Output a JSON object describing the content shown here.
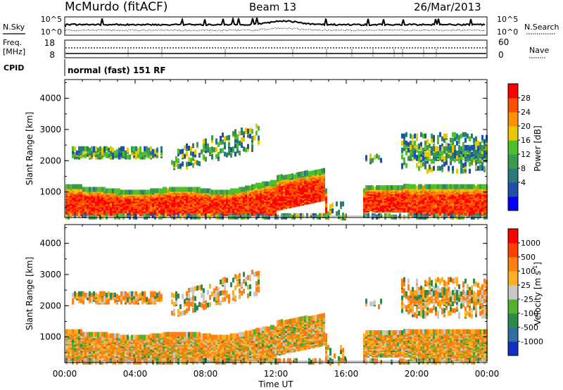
{
  "header": {
    "station": "McMurdo (fitACF)",
    "beam": "Beam 13",
    "date": "26/Mar/2013"
  },
  "strips": {
    "nsky_label": "N.Sky",
    "nsky_ticks": [
      "10^5",
      "10^0"
    ],
    "nsearch_label": "N.Search",
    "nsearch_ticks": [
      "10^5",
      "10^0"
    ],
    "freq_label_1": "Freq.",
    "freq_label_2": "[MHz]",
    "freq_ticks": [
      "18",
      "8"
    ],
    "nave_label": "Nave",
    "nave_ticks": [
      "60",
      "0"
    ],
    "cpid_label": "CPID",
    "cpid_value": "normal (fast) 151 RF"
  },
  "chart_data": [
    {
      "type": "heatmap",
      "name": "power-panel",
      "ylabel": "Slant Range [km]",
      "ylim": [
        180,
        4600
      ],
      "y_ticks": [
        1000,
        2000,
        3000,
        4000
      ],
      "colorbar_label": "Power [dB]",
      "colorbar_ticks": [
        "28",
        "24",
        "20",
        "16",
        "12",
        "8",
        "4"
      ],
      "colorbar_colors": [
        "#0000ff",
        "#1f4fa8",
        "#2a7a7a",
        "#3c9a50",
        "#4fbf30",
        "#e8c800",
        "#ff9000",
        "#ff5000",
        "#ff0000"
      ]
    },
    {
      "type": "heatmap",
      "name": "velocity-panel",
      "ylabel": "Slant Range [km]",
      "ylim": [
        180,
        4600
      ],
      "y_ticks": [
        1000,
        2000,
        3000,
        4000
      ],
      "colorbar_label": "Velocity [m s",
      "colorbar_label_sup": "-1",
      "colorbar_label_end": "]",
      "colorbar_ticks": [
        "1000",
        "500",
        "100",
        "25",
        "-25",
        "-100",
        "-500",
        "-1000"
      ],
      "colorbar_colors": [
        "#1030c0",
        "#2f6ea0",
        "#2d8a4a",
        "#55b030",
        "#c8c8c8",
        "#ffb020",
        "#ff8010",
        "#ff4000",
        "#ff0000"
      ],
      "xlabel": "Time UT",
      "x_ticks": [
        "00:00",
        "04:00",
        "08:00",
        "12:00",
        "16:00",
        "20:00",
        "00:00"
      ]
    }
  ]
}
